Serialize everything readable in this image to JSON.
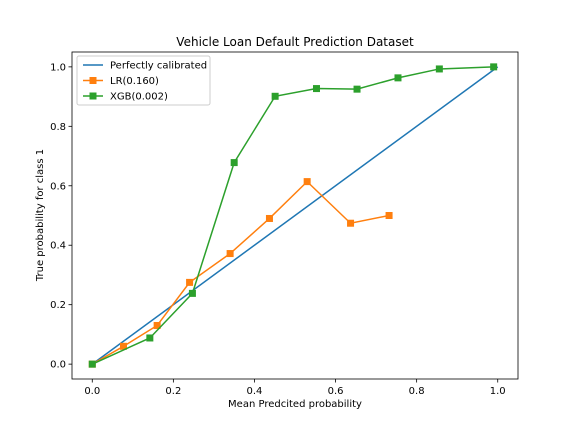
{
  "chart_data": {
    "type": "line",
    "title": "Vehicle Loan Default Prediction Dataset",
    "xlabel": "Mean Predcited probability",
    "ylabel": "True probability for class 1",
    "xlim": [
      -0.05,
      1.05
    ],
    "ylim": [
      -0.05,
      1.05
    ],
    "xticks": [
      "0.0",
      "0.2",
      "0.4",
      "0.6",
      "0.8",
      "1.0"
    ],
    "yticks": [
      "0.0",
      "0.2",
      "0.4",
      "0.6",
      "0.8",
      "1.0"
    ],
    "grid": false,
    "legend_position": "top-left",
    "series": [
      {
        "name": "Perfectly calibrated",
        "color": "#1f77b4",
        "marker": "none",
        "x": [
          0.0,
          1.0
        ],
        "y": [
          0.0,
          1.0
        ]
      },
      {
        "name": "LR(0.160)",
        "color": "#ff7f0e",
        "marker": "square",
        "x": [
          0.0,
          0.077,
          0.16,
          0.24,
          0.34,
          0.437,
          0.53,
          0.637,
          0.732
        ],
        "y": [
          0.0,
          0.06,
          0.13,
          0.275,
          0.372,
          0.49,
          0.614,
          0.474,
          0.5
        ]
      },
      {
        "name": "XGB(0.002)",
        "color": "#2ca02c",
        "marker": "square",
        "x": [
          0.0,
          0.142,
          0.247,
          0.35,
          0.451,
          0.553,
          0.653,
          0.754,
          0.856,
          0.99
        ],
        "y": [
          0.0,
          0.088,
          0.238,
          0.678,
          0.901,
          0.927,
          0.925,
          0.963,
          0.993,
          1.0
        ]
      }
    ]
  }
}
